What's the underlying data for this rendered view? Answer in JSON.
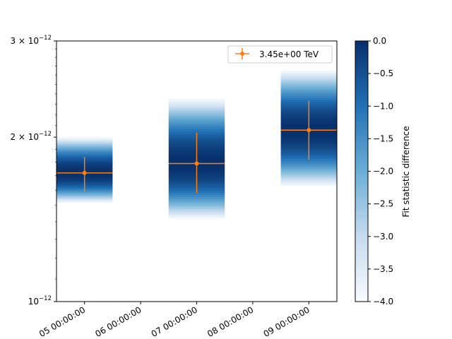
{
  "chart_data": {
    "type": "scatter",
    "x_categories": [
      "05 00:00:00",
      "06 00:00:00",
      "07 00:00:00",
      "08 00:00:00",
      "09 00:00:00"
    ],
    "yscale": "log",
    "ylim": [
      1e-12,
      3e-12
    ],
    "y_ticks": [
      {
        "value": 1e-12,
        "mantissa": "",
        "exponent": "−12"
      },
      {
        "value": 2e-12,
        "mantissa": "2 × ",
        "exponent": "−12"
      },
      {
        "value": 3e-12,
        "mantissa": "3 × ",
        "exponent": "−12"
      }
    ],
    "series": [
      {
        "name": "3.45e+00 TeV",
        "color": "#ff7f0e",
        "points": [
          {
            "x": 0,
            "y": 1.72e-12,
            "yerr_low": 1.59e-12,
            "yerr_high": 1.84e-12,
            "x_low": -0.5,
            "x_high": 0.5
          },
          {
            "x": 2,
            "y": 1.79e-12,
            "yerr_low": 1.58e-12,
            "yerr_high": 2.04e-12,
            "x_low": 1.5,
            "x_high": 2.5
          },
          {
            "x": 4,
            "y": 2.06e-12,
            "yerr_low": 1.82e-12,
            "yerr_high": 2.33e-12,
            "x_low": 3.5,
            "x_high": 4.5
          }
        ]
      }
    ],
    "profiles": [
      {
        "x_low": -0.5,
        "x_high": 0.5,
        "y_low": 1.52e-12,
        "y_high": 2e-12,
        "y_best": 1.72e-12
      },
      {
        "x_low": 1.5,
        "x_high": 2.5,
        "y_low": 1.42e-12,
        "y_high": 2.35e-12,
        "y_best": 1.79e-12
      },
      {
        "x_low": 3.5,
        "x_high": 4.5,
        "y_low": 1.63e-12,
        "y_high": 2.65e-12,
        "y_best": 2.06e-12
      }
    ],
    "colorbar": {
      "label": "Fit statistic difference",
      "range": [
        -4.0,
        0.0
      ],
      "ticks": [
        "0.0",
        "−0.5",
        "−1.0",
        "−1.5",
        "−2.0",
        "−2.5",
        "−3.0",
        "−3.5",
        "−4.0"
      ],
      "colormap": "Blues"
    },
    "legend_position": "top-right",
    "legend_label": "3.45e+00 TeV"
  }
}
